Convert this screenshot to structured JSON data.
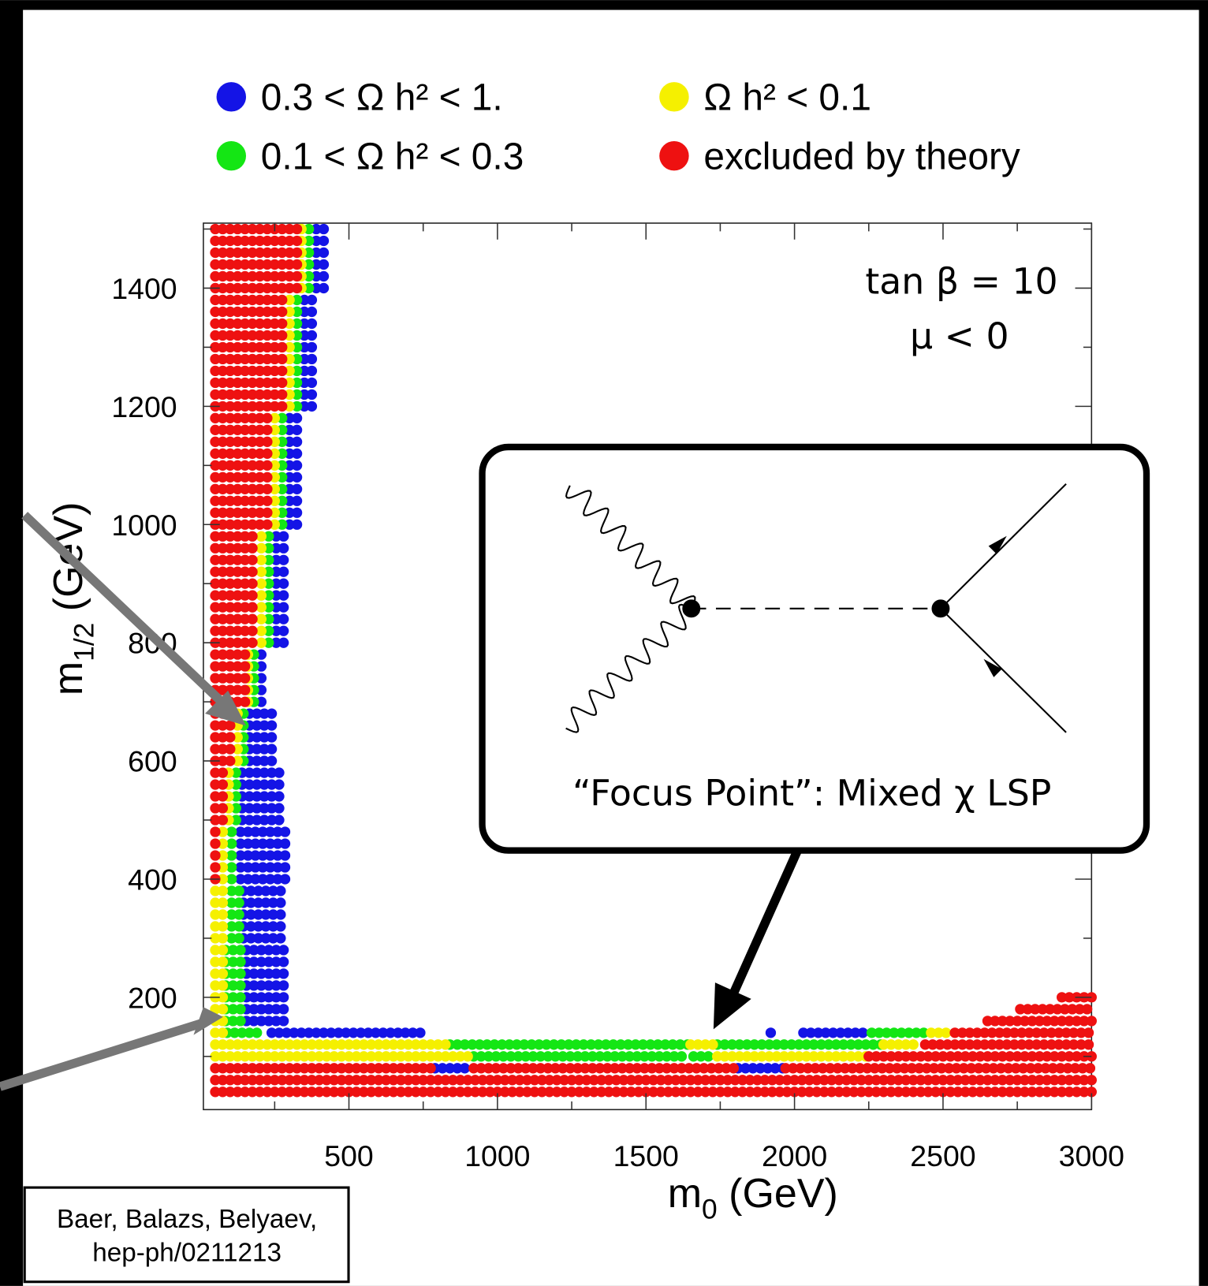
{
  "chart_data": {
    "type": "dot-region",
    "xlabel": [
      "m",
      "0",
      " (GeV)"
    ],
    "ylabel": [
      "m",
      "1/2",
      " (GeV)"
    ],
    "annotations": [
      "tan β = 10",
      "μ < 0"
    ],
    "inset_caption": "“Focus Point”: Mixed χ LSP",
    "citation": [
      "Baer, Balazs, Belyaev,",
      "hep-ph/0211213"
    ],
    "xlim": [
      10,
      3000
    ],
    "ylim": [
      10,
      1510
    ],
    "xticks": [
      500,
      1000,
      1500,
      2000,
      2500,
      3000
    ],
    "yticks": [
      200,
      400,
      600,
      800,
      1000,
      1200,
      1400
    ],
    "xticks_minor": [
      250,
      750,
      1250,
      1750,
      2250,
      2750
    ],
    "yticks_minor": [
      100,
      300,
      500,
      700,
      900,
      1100,
      1300,
      1500
    ],
    "series": [
      {
        "name": "0.3  < Ω h² <  1.",
        "color": "#1414e6",
        "values": [
          [
            1400,
            1500,
            390,
            420
          ],
          [
            1200,
            1380,
            350,
            375
          ],
          [
            1000,
            1180,
            300,
            325
          ],
          [
            800,
            980,
            255,
            280
          ],
          [
            700,
            780,
            205,
            220
          ],
          [
            600,
            680,
            165,
            245
          ],
          [
            500,
            580,
            140,
            270
          ],
          [
            400,
            480,
            135,
            285
          ],
          [
            300,
            380,
            145,
            285
          ],
          [
            160,
            280,
            155,
            280
          ],
          [
            140,
            140,
            240,
            750
          ],
          [
            140,
            140,
            1920,
            1920
          ],
          [
            140,
            140,
            2030,
            2250
          ],
          [
            80,
            80,
            790,
            910
          ],
          [
            80,
            80,
            1810,
            1960
          ]
        ]
      },
      {
        "name": "0.1  < Ω h² <  0.3",
        "color": "#14e614",
        "values": [
          [
            1400,
            1500,
            365,
            380
          ],
          [
            1200,
            1380,
            325,
            340
          ],
          [
            1000,
            1180,
            275,
            290
          ],
          [
            800,
            980,
            230,
            245
          ],
          [
            700,
            780,
            180,
            195
          ],
          [
            600,
            680,
            145,
            155
          ],
          [
            500,
            580,
            120,
            130
          ],
          [
            400,
            480,
            105,
            125
          ],
          [
            300,
            380,
            105,
            135
          ],
          [
            160,
            280,
            85,
            145
          ],
          [
            140,
            140,
            90,
            200
          ],
          [
            140,
            140,
            2260,
            2450
          ],
          [
            120,
            120,
            840,
            1640
          ],
          [
            120,
            120,
            1740,
            2290
          ],
          [
            100,
            100,
            920,
            1640
          ],
          [
            100,
            100,
            1660,
            1730
          ]
        ]
      },
      {
        "name": "Ω h² <  0.1",
        "color": "#f5f000",
        "values": [
          [
            1400,
            1500,
            340,
            355
          ],
          [
            1200,
            1380,
            300,
            315
          ],
          [
            1000,
            1180,
            250,
            265
          ],
          [
            800,
            980,
            205,
            220
          ],
          [
            700,
            780,
            160,
            170
          ],
          [
            600,
            680,
            125,
            135
          ],
          [
            500,
            580,
            95,
            110
          ],
          [
            400,
            480,
            75,
            95
          ],
          [
            300,
            380,
            50,
            95
          ],
          [
            160,
            280,
            50,
            75
          ],
          [
            140,
            140,
            50,
            80
          ],
          [
            140,
            140,
            2460,
            2530
          ],
          [
            120,
            120,
            50,
            830
          ],
          [
            120,
            120,
            1650,
            1730
          ],
          [
            120,
            120,
            2300,
            2420
          ],
          [
            100,
            100,
            50,
            915
          ],
          [
            100,
            100,
            1740,
            2240
          ]
        ]
      },
      {
        "name": "excluded by theory",
        "color": "#ee1111",
        "values": [
          [
            1400,
            1500,
            50,
            330
          ],
          [
            1200,
            1380,
            50,
            290
          ],
          [
            1000,
            1180,
            50,
            240
          ],
          [
            800,
            980,
            50,
            195
          ],
          [
            700,
            780,
            50,
            150
          ],
          [
            600,
            680,
            50,
            115
          ],
          [
            500,
            580,
            50,
            90
          ],
          [
            400,
            480,
            50,
            70
          ],
          [
            200,
            200,
            2900,
            3000
          ],
          [
            180,
            180,
            2760,
            3000
          ],
          [
            160,
            160,
            2650,
            3000
          ],
          [
            140,
            140,
            2540,
            3000
          ],
          [
            120,
            120,
            2440,
            3000
          ],
          [
            100,
            100,
            2250,
            3000
          ],
          [
            80,
            80,
            50,
            780
          ],
          [
            80,
            80,
            920,
            1800
          ],
          [
            80,
            80,
            1970,
            3000
          ],
          [
            40,
            60,
            50,
            3000
          ]
        ]
      }
    ]
  }
}
